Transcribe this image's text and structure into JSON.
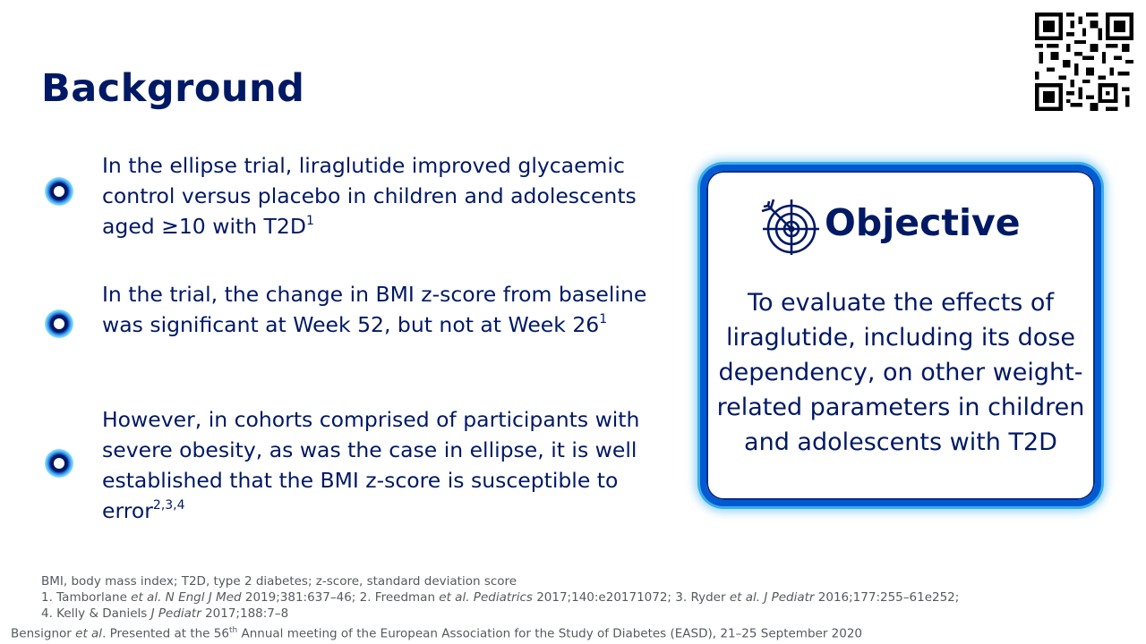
{
  "slide": {
    "title": "Background"
  },
  "qr_code": {
    "icon": "qr-code-icon"
  },
  "bullets": [
    {
      "text": "In the ellipse trial, liraglutide improved glycaemic control versus placebo in children and adolescents aged ≥10 with T2D",
      "ref": "1"
    },
    {
      "text": "In the trial, the change in BMI z-score from baseline was significant at Week 52, but not at Week 26",
      "ref": "1"
    },
    {
      "text": "However, in cohorts comprised of participants with severe obesity, as was the case in ellipse, it is well established that the BMI z-score is susceptible to error",
      "ref": "2,3,4"
    }
  ],
  "objective": {
    "icon": "target-icon",
    "title": "Objective",
    "text": "To evaluate the effects of liraglutide, including its dose dependency, on other weight-related parameters in children and adolescents with T2D"
  },
  "footnotes": {
    "abbreviations": "BMI, body mass index; T2D, type 2 diabetes; z-score, standard deviation score",
    "references": [
      {
        "num": "1. ",
        "author": "Tamborlane ",
        "etal": "et al.",
        "journal": " N Engl J Med",
        "details": " 2019;381:637–46; "
      },
      {
        "num": "2. ",
        "author": "Freedman ",
        "etal": "et al.",
        "journal": " Pediatrics",
        "details": " 2017;140:e20171072; "
      },
      {
        "num": "3. ",
        "author": "Ryder ",
        "etal": "et al.",
        "journal": " J Pediatr",
        "details": " 2016;177:255–61e252;"
      },
      {
        "num": "4. ",
        "author": "Kelly & Daniels ",
        "etal": "",
        "journal": "J Pediatr",
        "details": " 2017;188:7–8"
      }
    ]
  },
  "citation": {
    "author": "Bensignor ",
    "etal": "et al",
    "text_before": ". Presented at the 56",
    "ordinal_suffix": "th",
    "text_after": " Annual meeting of the European Association for the Study of Diabetes (EASD), 21–25 September 2020"
  },
  "colors": {
    "primary_navy": "#001965",
    "accent_blue": "#005ad2",
    "glow_blue": "#3aaeea",
    "footnote_grey": "#555a60"
  }
}
